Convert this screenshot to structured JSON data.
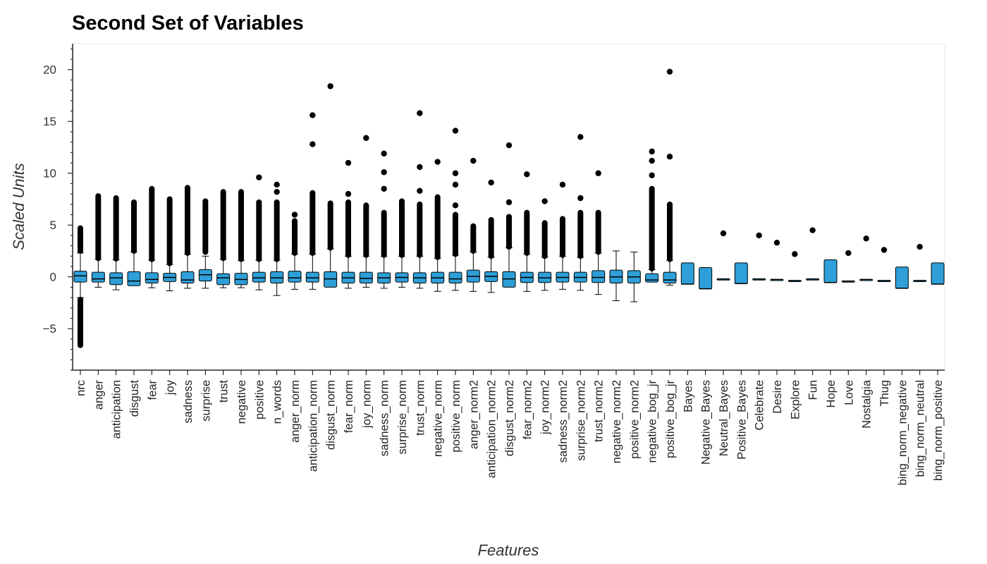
{
  "chart_data": {
    "type": "box",
    "title": "Second Set of Variables",
    "xlabel": "Features",
    "ylabel": "Scaled Units",
    "ylim": [
      -9,
      22.5
    ],
    "yticks": [
      -5,
      0,
      5,
      10,
      15,
      20
    ],
    "grid": false,
    "box_color": "#2e9fd8",
    "categories": [
      "nrc",
      "anger",
      "anticipation",
      "disgust",
      "fear",
      "joy",
      "sadness",
      "surprise",
      "trust",
      "negative",
      "positive",
      "n_words",
      "anger_norm",
      "anticipation_norm",
      "disgust_norm",
      "fear_norm",
      "joy_norm",
      "sadness_norm",
      "surprise_norm",
      "trust_norm",
      "negative_norm",
      "positive_norm",
      "anger_norm2",
      "anticipation_norm2",
      "disgust_norm2",
      "fear_norm2",
      "joy_norm2",
      "sadness_norm2",
      "surprise_norm2",
      "trust_norm2",
      "negative_norm2",
      "positive_norm2",
      "negative_bog_jr",
      "positive_bog_jr",
      "Bayes",
      "Negative_Bayes",
      "Neutral_Bayes",
      "Positive_Bayes",
      "Celebrate",
      "Desire",
      "Explore",
      "Fun",
      "Hope",
      "Love",
      "Nostalgia",
      "Thug",
      "bing_norm_negative",
      "bing_norm_neutral",
      "bing_norm_positive"
    ],
    "boxes": [
      {
        "lo": -2.0,
        "q1": -0.5,
        "med": 0.1,
        "q3": 0.55,
        "hi": 2.3,
        "out_hi": [
          2.5,
          4.7
        ],
        "out_lo": [
          -2.2,
          -6.6
        ]
      },
      {
        "lo": -1.0,
        "q1": -0.5,
        "med": -0.2,
        "q3": 0.45,
        "hi": 1.7,
        "out_hi": [
          1.8,
          7.8
        ]
      },
      {
        "lo": -1.25,
        "q1": -0.75,
        "med": -0.1,
        "q3": 0.4,
        "hi": 1.65,
        "out_hi": [
          1.75,
          7.6
        ]
      },
      {
        "lo": -0.85,
        "q1": -0.85,
        "med": -0.4,
        "q3": 0.5,
        "hi": 2.4,
        "out_hi": [
          2.5,
          7.2
        ]
      },
      {
        "lo": -1.05,
        "q1": -0.6,
        "med": -0.25,
        "q3": 0.4,
        "hi": 1.6,
        "out_hi": [
          1.7,
          8.5
        ]
      },
      {
        "lo": -1.35,
        "q1": -0.45,
        "med": -0.05,
        "q3": 0.35,
        "hi": 1.2,
        "out_hi": [
          1.3,
          7.5
        ]
      },
      {
        "lo": -1.1,
        "q1": -0.6,
        "med": -0.3,
        "q3": 0.5,
        "hi": 2.2,
        "out_hi": [
          2.3,
          8.6
        ]
      },
      {
        "lo": -1.1,
        "q1": -0.4,
        "med": 0.2,
        "q3": 0.7,
        "hi": 2.0,
        "out_hi": [
          2.4,
          7.3
        ]
      },
      {
        "lo": -1.05,
        "q1": -0.75,
        "med": -0.1,
        "q3": 0.3,
        "hi": 1.7,
        "out_hi": [
          1.8,
          8.2
        ]
      },
      {
        "lo": -1.05,
        "q1": -0.75,
        "med": -0.25,
        "q3": 0.35,
        "hi": 1.6,
        "out_hi": [
          1.7,
          8.2
        ]
      },
      {
        "lo": -1.25,
        "q1": -0.5,
        "med": -0.1,
        "q3": 0.45,
        "hi": 1.6,
        "out_hi": [
          1.7,
          7.2
        ],
        "out_extra": [
          9.6
        ]
      },
      {
        "lo": -1.8,
        "q1": -0.6,
        "med": -0.1,
        "q3": 0.5,
        "hi": 1.6,
        "out_hi": [
          1.7,
          7.2
        ],
        "out_extra": [
          8.2,
          8.9
        ]
      },
      {
        "lo": -1.2,
        "q1": -0.5,
        "med": -0.1,
        "q3": 0.55,
        "hi": 2.2,
        "out_hi": [
          2.3,
          5.4
        ],
        "out_extra": [
          6.0
        ]
      },
      {
        "lo": -1.2,
        "q1": -0.5,
        "med": -0.1,
        "q3": 0.45,
        "hi": 2.2,
        "out_hi": [
          2.3,
          8.1
        ],
        "out_extra": [
          12.8,
          15.6
        ]
      },
      {
        "lo": -1.0,
        "q1": -1.0,
        "med": -0.2,
        "q3": 0.5,
        "hi": 2.7,
        "out_hi": [
          2.8,
          7.1
        ],
        "out_extra": [
          18.4
        ]
      },
      {
        "lo": -1.1,
        "q1": -0.6,
        "med": -0.1,
        "q3": 0.45,
        "hi": 2.0,
        "out_hi": [
          2.1,
          7.2
        ],
        "out_extra": [
          8.0,
          11.0
        ]
      },
      {
        "lo": -1.0,
        "q1": -0.6,
        "med": -0.15,
        "q3": 0.45,
        "hi": 2.0,
        "out_hi": [
          2.1,
          6.9
        ],
        "out_extra": [
          13.4
        ]
      },
      {
        "lo": -1.1,
        "q1": -0.6,
        "med": -0.1,
        "q3": 0.4,
        "hi": 2.0,
        "out_hi": [
          2.1,
          6.2
        ],
        "out_extra": [
          8.5,
          10.1,
          11.9
        ]
      },
      {
        "lo": -1.0,
        "q1": -0.5,
        "med": -0.05,
        "q3": 0.4,
        "hi": 2.0,
        "out_hi": [
          2.1,
          7.3
        ]
      },
      {
        "lo": -1.1,
        "q1": -0.6,
        "med": -0.1,
        "q3": 0.4,
        "hi": 2.0,
        "out_hi": [
          2.1,
          7.0
        ],
        "out_extra": [
          8.3,
          10.6,
          15.8
        ]
      },
      {
        "lo": -1.4,
        "q1": -0.6,
        "med": -0.1,
        "q3": 0.45,
        "hi": 1.8,
        "out_hi": [
          1.9,
          7.7
        ],
        "out_extra": [
          11.1
        ]
      },
      {
        "lo": -1.3,
        "q1": -0.6,
        "med": -0.2,
        "q3": 0.45,
        "hi": 2.1,
        "out_hi": [
          2.2,
          6.0
        ],
        "out_extra": [
          6.9,
          8.9,
          10.0,
          14.1
        ]
      },
      {
        "lo": -1.4,
        "q1": -0.5,
        "med": 0.05,
        "q3": 0.65,
        "hi": 2.4,
        "out_hi": [
          2.5,
          4.9
        ],
        "out_extra": [
          11.2
        ]
      },
      {
        "lo": -1.5,
        "q1": -0.45,
        "med": 0.05,
        "q3": 0.5,
        "hi": 1.9,
        "out_hi": [
          2.0,
          5.5
        ],
        "out_extra": [
          9.1
        ]
      },
      {
        "lo": -1.0,
        "q1": -1.0,
        "med": -0.2,
        "q3": 0.5,
        "hi": 2.8,
        "out_hi": [
          2.9,
          5.8
        ],
        "out_extra": [
          7.2,
          12.7
        ]
      },
      {
        "lo": -1.4,
        "q1": -0.55,
        "med": -0.05,
        "q3": 0.45,
        "hi": 2.2,
        "out_hi": [
          2.3,
          6.2
        ],
        "out_extra": [
          9.9
        ]
      },
      {
        "lo": -1.3,
        "q1": -0.55,
        "med": -0.1,
        "q3": 0.45,
        "hi": 1.9,
        "out_hi": [
          2.0,
          5.2
        ],
        "out_extra": [
          7.3
        ]
      },
      {
        "lo": -1.2,
        "q1": -0.5,
        "med": -0.05,
        "q3": 0.45,
        "hi": 2.0,
        "out_hi": [
          2.1,
          5.6
        ],
        "out_extra": [
          8.9
        ]
      },
      {
        "lo": -1.3,
        "q1": -0.5,
        "med": -0.05,
        "q3": 0.45,
        "hi": 1.9,
        "out_hi": [
          2.0,
          6.2
        ],
        "out_extra": [
          7.6,
          13.5
        ]
      },
      {
        "lo": -1.7,
        "q1": -0.55,
        "med": -0.05,
        "q3": 0.6,
        "hi": 2.3,
        "out_hi": [
          2.4,
          6.2
        ],
        "out_extra": [
          10.0
        ]
      },
      {
        "lo": -2.3,
        "q1": -0.6,
        "med": 0.0,
        "q3": 0.65,
        "hi": 2.5
      },
      {
        "lo": -2.4,
        "q1": -0.6,
        "med": 0.0,
        "q3": 0.6,
        "hi": 2.4
      },
      {
        "lo": -0.5,
        "q1": -0.5,
        "med": -0.3,
        "q3": 0.3,
        "hi": 0.7,
        "out_hi": [
          0.8,
          8.5
        ],
        "out_extra": [
          9.8,
          11.2,
          12.1
        ]
      },
      {
        "lo": -0.8,
        "q1": -0.6,
        "med": -0.3,
        "q3": 0.45,
        "hi": 1.6,
        "out_hi": [
          1.7,
          7.0
        ],
        "out_extra": [
          11.6,
          19.8
        ]
      },
      {
        "lo": -0.7,
        "q1": -0.7,
        "med": -0.7,
        "q3": 1.35,
        "hi": 1.35
      },
      {
        "lo": -1.15,
        "q1": -1.15,
        "med": -1.15,
        "q3": 0.9,
        "hi": 0.9
      },
      {
        "lo": -0.2,
        "q1": -0.2,
        "med": -0.2,
        "q3": -0.2,
        "hi": -0.2,
        "out_extra": [
          4.2
        ]
      },
      {
        "lo": -0.65,
        "q1": -0.65,
        "med": -0.65,
        "q3": 1.35,
        "hi": 1.35
      },
      {
        "lo": -0.2,
        "q1": -0.2,
        "med": -0.2,
        "q3": -0.2,
        "hi": -0.2,
        "out_extra": [
          4.0
        ]
      },
      {
        "lo": -0.25,
        "q1": -0.25,
        "med": -0.25,
        "q3": -0.25,
        "hi": -0.25,
        "out_extra": [
          3.3
        ]
      },
      {
        "lo": -0.35,
        "q1": -0.35,
        "med": -0.35,
        "q3": -0.35,
        "hi": -0.35,
        "out_extra": [
          2.2
        ]
      },
      {
        "lo": -0.2,
        "q1": -0.2,
        "med": -0.2,
        "q3": -0.2,
        "hi": -0.2,
        "out_extra": [
          4.5
        ]
      },
      {
        "lo": -0.55,
        "q1": -0.55,
        "med": -0.55,
        "q3": 1.65,
        "hi": 1.65
      },
      {
        "lo": -0.4,
        "q1": -0.4,
        "med": -0.4,
        "q3": -0.4,
        "hi": -0.4,
        "out_extra": [
          2.3
        ]
      },
      {
        "lo": -0.25,
        "q1": -0.25,
        "med": -0.25,
        "q3": -0.25,
        "hi": -0.25,
        "out_extra": [
          3.7
        ]
      },
      {
        "lo": -0.35,
        "q1": -0.35,
        "med": -0.35,
        "q3": -0.35,
        "hi": -0.35,
        "out_extra": [
          2.6
        ]
      },
      {
        "lo": -1.1,
        "q1": -1.1,
        "med": -1.1,
        "q3": 0.95,
        "hi": 0.95
      },
      {
        "lo": -0.35,
        "q1": -0.35,
        "med": -0.35,
        "q3": -0.35,
        "hi": -0.35,
        "out_extra": [
          2.9
        ]
      },
      {
        "lo": -0.7,
        "q1": -0.7,
        "med": -0.7,
        "q3": 1.35,
        "hi": 1.35
      }
    ]
  }
}
